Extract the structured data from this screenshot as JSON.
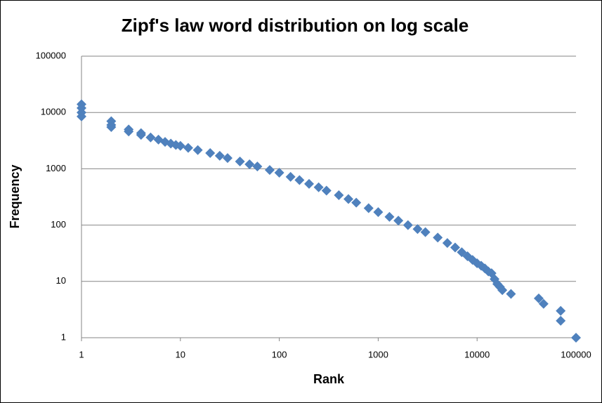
{
  "chart_data": {
    "type": "scatter",
    "title": "Zipf's law word distribution on log scale",
    "xlabel": "Rank",
    "ylabel": "Frequency",
    "x": [
      1,
      1,
      1,
      1,
      2,
      2,
      2,
      3,
      3,
      4,
      4,
      5,
      6,
      7,
      8,
      9,
      10,
      12,
      15,
      20,
      25,
      30,
      40,
      50,
      60,
      80,
      100,
      130,
      160,
      200,
      250,
      300,
      400,
      500,
      600,
      800,
      1000,
      1300,
      1600,
      2000,
      2500,
      3000,
      4000,
      5000,
      6000,
      7000,
      8000,
      9000,
      10000,
      11000,
      12000,
      13000,
      14000,
      15000,
      16000,
      17000,
      18000,
      22000,
      42000,
      47000,
      70000,
      70000,
      100000
    ],
    "values": [
      14000,
      12000,
      10000,
      8500,
      7000,
      6000,
      5500,
      5000,
      4600,
      4300,
      4000,
      3600,
      3300,
      3000,
      2800,
      2650,
      2550,
      2350,
      2150,
      1900,
      1700,
      1550,
      1350,
      1200,
      1100,
      950,
      850,
      720,
      630,
      540,
      470,
      410,
      340,
      290,
      250,
      200,
      170,
      140,
      120,
      100,
      85,
      75,
      60,
      48,
      40,
      33,
      28,
      24,
      21,
      19,
      17,
      15,
      14,
      11,
      9,
      8,
      7,
      6,
      5,
      4,
      3,
      2,
      1
    ],
    "color": "#4f81bd",
    "xlim": [
      1,
      100000
    ],
    "xticks": [
      1,
      10,
      100,
      1000,
      10000,
      100000
    ],
    "xlog": true,
    "ylim": [
      1,
      100000
    ],
    "yticks": [
      1,
      10,
      100,
      1000,
      10000,
      100000
    ],
    "ylog": true,
    "grid": true
  }
}
